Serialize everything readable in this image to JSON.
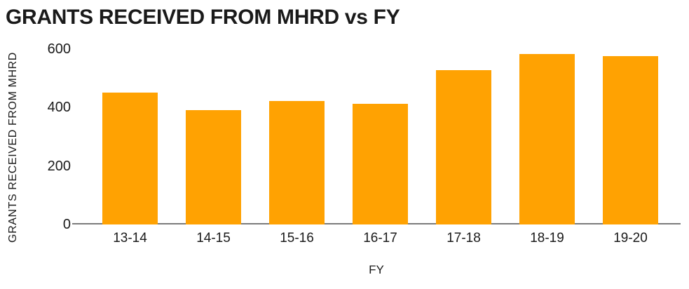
{
  "chart_data": {
    "type": "bar",
    "title": "GRANTS RECEIVED FROM MHRD vs FY",
    "categories": [
      "13-14",
      "14-15",
      "15-16",
      "16-17",
      "17-18",
      "18-19",
      "19-20"
    ],
    "values": [
      451,
      391,
      422,
      413,
      528,
      583,
      576
    ],
    "xlabel": "FY",
    "ylabel": "GRANTS RECEIVED FROM MHRD",
    "ylim": [
      0,
      600
    ],
    "y_ticks": [
      0,
      200,
      400,
      600
    ],
    "grid": "off",
    "legend": "none",
    "bar_color": "#FFA202",
    "axis_line_color": "#7B7B7B",
    "text_color": "#1A1A1A"
  }
}
